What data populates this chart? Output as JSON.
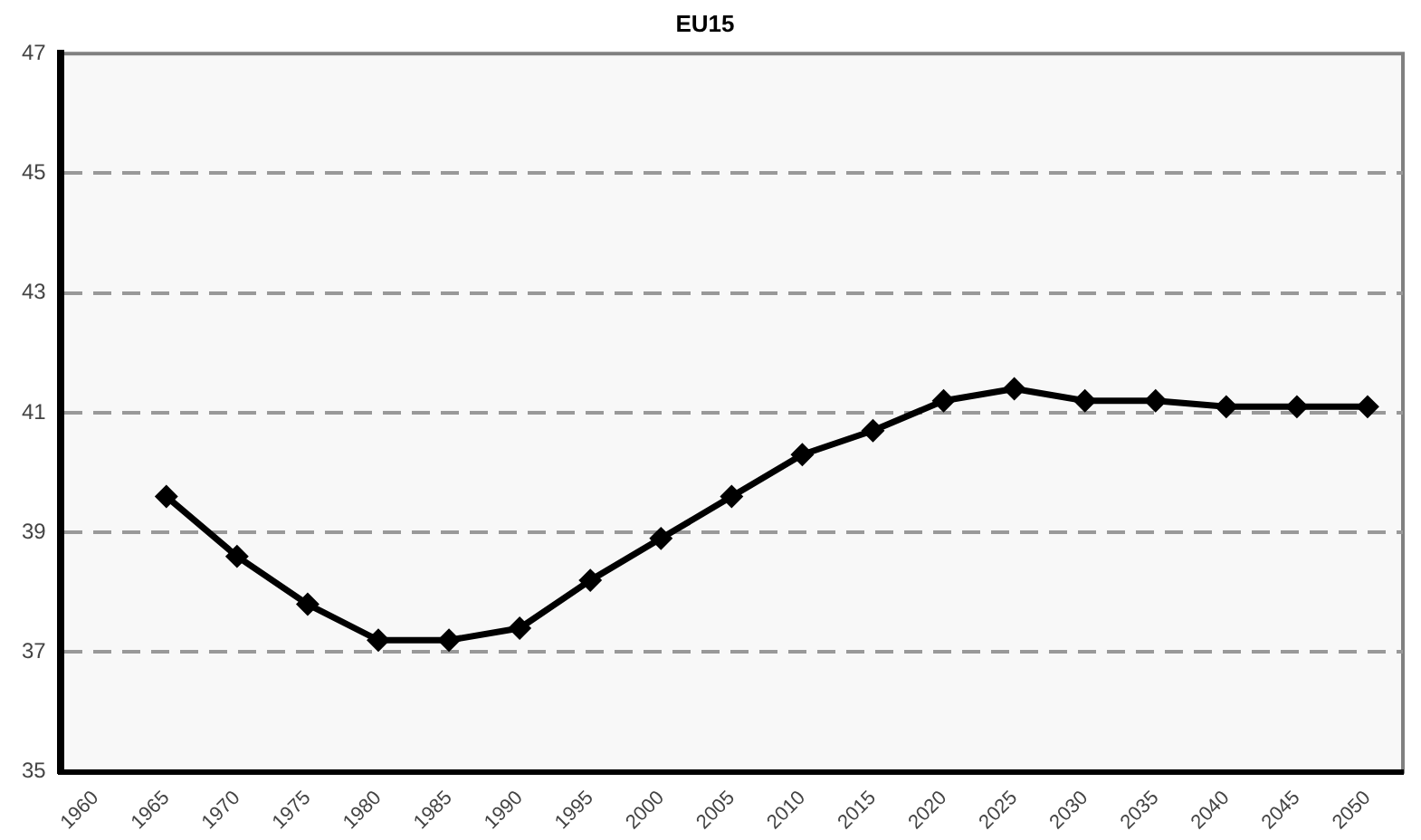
{
  "chart_data": {
    "type": "line",
    "title": "EU15",
    "categories": [
      "1960",
      "1965",
      "1970",
      "1975",
      "1980",
      "1985",
      "1990",
      "1995",
      "2000",
      "2005",
      "2010",
      "2015",
      "2020",
      "2025",
      "2030",
      "2035",
      "2040",
      "2045",
      "2050"
    ],
    "series": [
      {
        "color": "#000000",
        "values": [
          null,
          39.6,
          38.6,
          37.8,
          37.2,
          37.2,
          37.4,
          38.2,
          38.9,
          39.6,
          40.3,
          40.7,
          41.2,
          41.4,
          41.2,
          41.2,
          41.1,
          41.1,
          41.1
        ]
      }
    ],
    "ylim": [
      35,
      47
    ],
    "yticks": [
      35,
      37,
      39,
      41,
      43,
      45,
      47
    ],
    "grid": "y",
    "legend": false,
    "marker": "diamond",
    "line_style": "solid"
  }
}
